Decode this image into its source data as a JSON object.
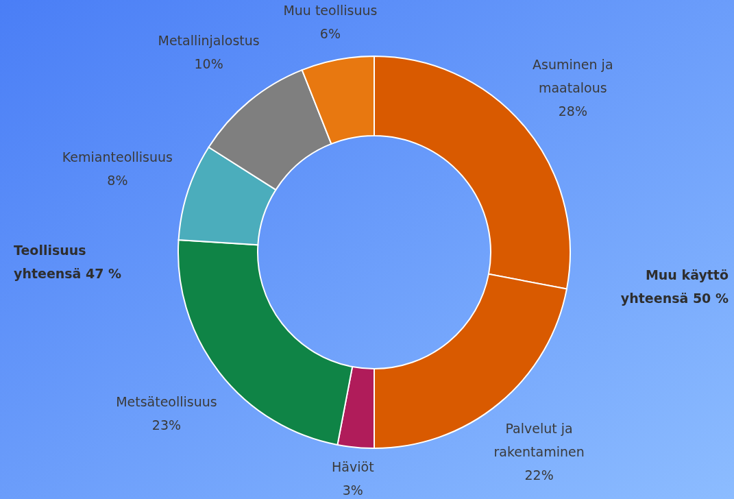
{
  "chart_data": {
    "type": "donut",
    "categories": [
      "Asuminen ja maatalous",
      "Palvelut ja rakentaminen",
      "Häviöt",
      "Metsäteollisuus",
      "Kemianteollisuus",
      "Metallinjalostus",
      "Muu teollisuus"
    ],
    "values": [
      28,
      22,
      3,
      23,
      8,
      10,
      6
    ],
    "colors": [
      "#d95a00",
      "#d95a00",
      "#b01c5a",
      "#0f8446",
      "#4badbc",
      "#7f7f7f",
      "#e87810"
    ],
    "value_labels": [
      "28%",
      "22%",
      "3%",
      "23%",
      "8%",
      "10%",
      "6%"
    ],
    "annotations": [
      "Teollisuus yhteensä 47 %",
      "Muu käyttö yhteensä 50 %"
    ]
  }
}
